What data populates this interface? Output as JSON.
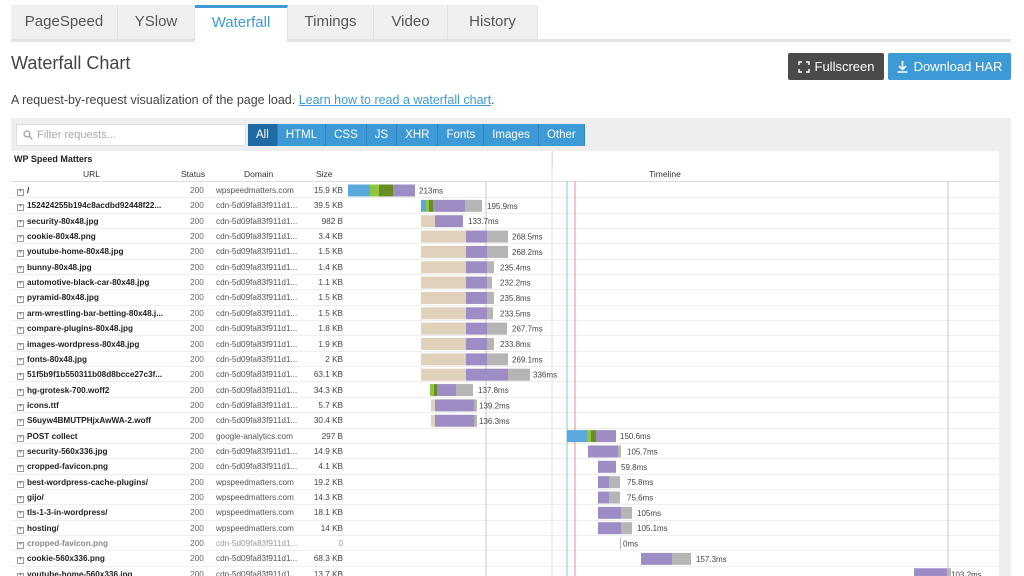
{
  "tabs": [
    "PageSpeed",
    "YSlow",
    "Waterfall",
    "Timings",
    "Video",
    "History"
  ],
  "page_title": "Waterfall Chart",
  "fullscreen_label": "Fullscreen",
  "download_label": "Download HAR",
  "subtitle": "A request-by-request visualization of the page load.",
  "subtitle_link": "Learn how to read a waterfall chart",
  "subtitle_end": ".",
  "search_placeholder": "Filter requests...",
  "filters": [
    "All",
    "HTML",
    "CSS",
    "JS",
    "XHR",
    "Fonts",
    "Images",
    "Other"
  ],
  "group_title": "WP Speed Matters",
  "columns": {
    "url": "URL",
    "status": "Status",
    "domain": "Domain",
    "size": "Size",
    "timeline": "Timeline"
  },
  "colors": {
    "accent": "#3d9ad6",
    "blocking": "#e0d1ba",
    "dns": "#5ba9dc",
    "connect": "#8dc63f",
    "ssl": "#6b8e23",
    "wait": "#9e8cc4",
    "receive": "#b5b5b5",
    "line_blue": "#7fc4e8",
    "line_red": "#e98c95"
  },
  "requests": [
    {
      "url": "/",
      "status": "200",
      "domain": "wpspeedmatters.com",
      "size": "15.9 KB",
      "time": "213ms"
    },
    {
      "url": "152424255b194c8acdbd92448f22...",
      "status": "200",
      "domain": "cdn-5d09fa83f911d1...",
      "size": "39.5 KB",
      "time": "195.9ms"
    },
    {
      "url": "security-80x48.jpg",
      "status": "200",
      "domain": "cdn-5d09fa83f911d1...",
      "size": "982 B",
      "time": "133.7ms"
    },
    {
      "url": "cookie-80x48.png",
      "status": "200",
      "domain": "cdn-5d09fa83f911d1...",
      "size": "3.4 KB",
      "time": "268.5ms"
    },
    {
      "url": "youtube-home-80x48.jpg",
      "status": "200",
      "domain": "cdn-5d09fa83f911d1...",
      "size": "1.5 KB",
      "time": "268.2ms"
    },
    {
      "url": "bunny-80x48.jpg",
      "status": "200",
      "domain": "cdn-5d09fa83f911d1...",
      "size": "1.4 KB",
      "time": "235.4ms"
    },
    {
      "url": "automotive-black-car-80x48.jpg",
      "status": "200",
      "domain": "cdn-5d09fa83f911d1...",
      "size": "1.1 KB",
      "time": "232.2ms"
    },
    {
      "url": "pyramid-80x48.jpg",
      "status": "200",
      "domain": "cdn-5d09fa83f911d1...",
      "size": "1.5 KB",
      "time": "235.8ms"
    },
    {
      "url": "arm-wrestling-bar-betting-80x48.j...",
      "status": "200",
      "domain": "cdn-5d09fa83f911d1...",
      "size": "1.5 KB",
      "time": "233.5ms"
    },
    {
      "url": "compare-plugins-80x48.jpg",
      "status": "200",
      "domain": "cdn-5d09fa83f911d1...",
      "size": "1.8 KB",
      "time": "267.7ms"
    },
    {
      "url": "images-wordpress-80x48.jpg",
      "status": "200",
      "domain": "cdn-5d09fa83f911d1...",
      "size": "1.9 KB",
      "time": "233.8ms"
    },
    {
      "url": "fonts-80x48.jpg",
      "status": "200",
      "domain": "cdn-5d09fa83f911d1...",
      "size": "2 KB",
      "time": "269.1ms"
    },
    {
      "url": "51f5b9f1b550311b08d8bcce27c3f...",
      "status": "200",
      "domain": "cdn-5d09fa83f911d1...",
      "size": "63.1 KB",
      "time": "336ms"
    },
    {
      "url": "hg-grotesk-700.woff2",
      "status": "200",
      "domain": "cdn-5d09fa83f911d1...",
      "size": "34.3 KB",
      "time": "137.8ms"
    },
    {
      "url": "icons.ttf",
      "status": "200",
      "domain": "cdn-5d09fa83f911d1...",
      "size": "5.7 KB",
      "time": "139.2ms"
    },
    {
      "url": "S6uyw4BMUTPHjxAwWA-2.woff",
      "status": "200",
      "domain": "cdn-5d09fa83f911d1...",
      "size": "30.4 KB",
      "time": "136.3ms"
    },
    {
      "url": "POST collect",
      "status": "200",
      "domain": "google-analytics.com",
      "size": "297 B",
      "time": "150.6ms"
    },
    {
      "url": "security-560x336.jpg",
      "status": "200",
      "domain": "cdn-5d09fa83f911d1...",
      "size": "14.9 KB",
      "time": "105.7ms"
    },
    {
      "url": "cropped-favicon.png",
      "status": "200",
      "domain": "cdn-5d09fa83f911d1...",
      "size": "4.1 KB",
      "time": "59.8ms"
    },
    {
      "url": "best-wordpress-cache-plugins/",
      "status": "200",
      "domain": "wpspeedmatters.com",
      "size": "19.2 KB",
      "time": "75.8ms"
    },
    {
      "url": "gijo/",
      "status": "200",
      "domain": "wpspeedmatters.com",
      "size": "14.3 KB",
      "time": "75.6ms"
    },
    {
      "url": "tls-1-3-in-wordpress/",
      "status": "200",
      "domain": "wpspeedmatters.com",
      "size": "18.1 KB",
      "time": "105ms"
    },
    {
      "url": "hosting/",
      "status": "200",
      "domain": "wpspeedmatters.com",
      "size": "14 KB",
      "time": "105.1ms"
    },
    {
      "url": "cropped-favicon.png",
      "status": "200",
      "domain": "cdn-5d09fa83f911d1...",
      "size": "0",
      "time": "0ms",
      "dim": true
    },
    {
      "url": "cookie-560x336.png",
      "status": "200",
      "domain": "cdn-5d09fa83f911d1...",
      "size": "68.3 KB",
      "time": "157.3ms"
    },
    {
      "url": "youtube-home-560x336.jpg",
      "status": "200",
      "domain": "cdn-5d09fa83f911d1...",
      "size": "13.7 KB",
      "time": "103.2ms"
    }
  ]
}
